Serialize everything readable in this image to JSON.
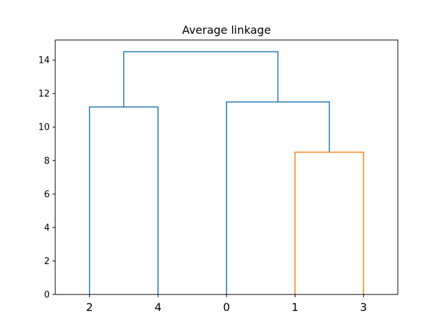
{
  "chart_data": {
    "type": "dendrogram",
    "title": "Average linkage",
    "xlabel": "",
    "ylabel": "",
    "ylim": [
      0,
      15.2
    ],
    "yticks": [
      0,
      2,
      4,
      6,
      8,
      10,
      12,
      14
    ],
    "leaves": [
      "2",
      "4",
      "0",
      "1",
      "3"
    ],
    "links": [
      {
        "left": "1",
        "right": "3",
        "height": 8.5,
        "color": "#ff7f0e"
      },
      {
        "left": "2",
        "right": "4",
        "height": 11.2,
        "color": "#1f77b4"
      },
      {
        "left": "0",
        "right": "(1,3)",
        "height": 11.5,
        "color": "#1f77b4"
      },
      {
        "left": "(2,4)",
        "right": "(0,(1,3))",
        "height": 14.5,
        "color": "#1f77b4"
      }
    ],
    "grid": false
  }
}
